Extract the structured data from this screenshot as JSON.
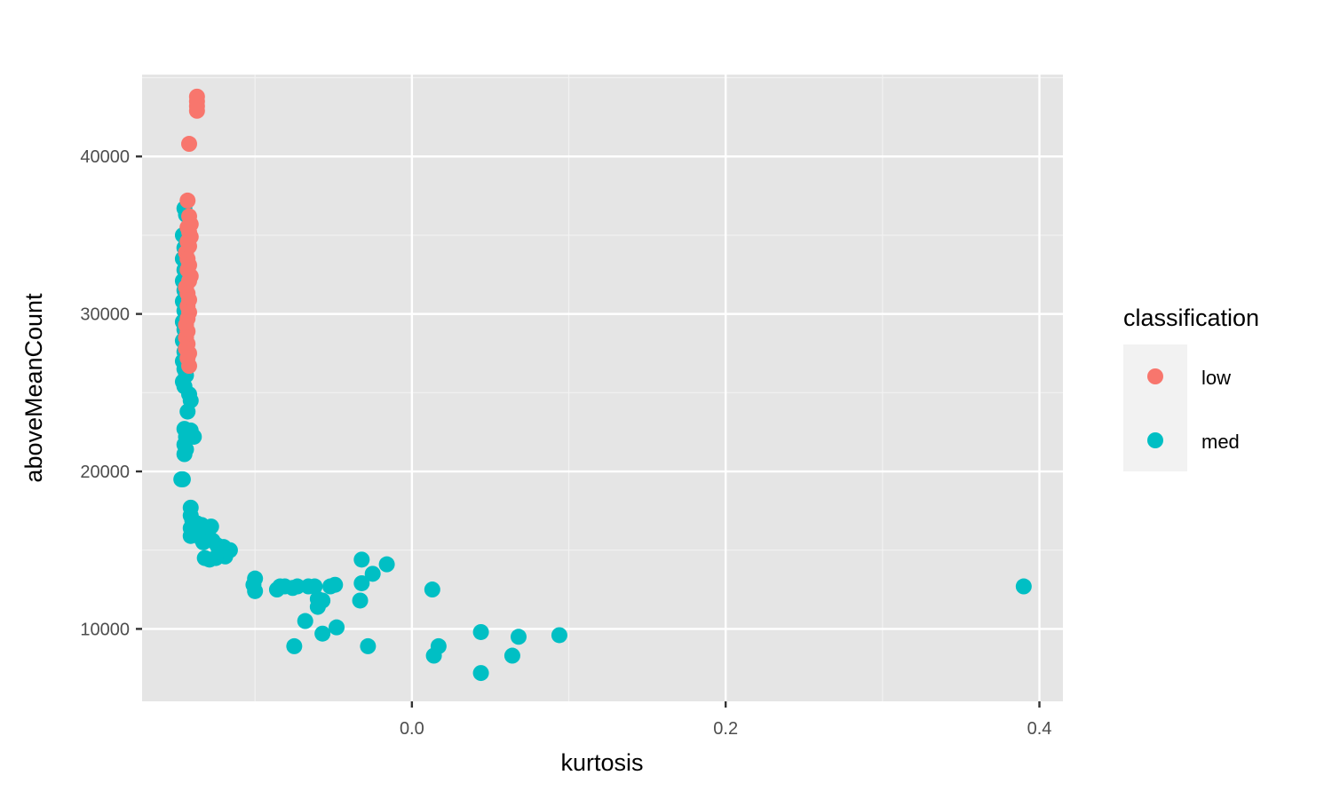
{
  "chart_data": {
    "type": "scatter",
    "xlabel": "kurtosis",
    "ylabel": "aboveMeanCount",
    "xlim": [
      -0.172,
      0.415
    ],
    "ylim": [
      5400,
      45200
    ],
    "x_ticks": [
      0.0,
      0.2,
      0.4
    ],
    "x_tick_labels": [
      "0.0",
      "0.2",
      "0.4"
    ],
    "y_ticks": [
      10000,
      20000,
      30000,
      40000
    ],
    "y_tick_labels": [
      "10000",
      "20000",
      "30000",
      "40000"
    ],
    "grid": true,
    "legend": {
      "title": "classification",
      "position": "right",
      "entries": [
        {
          "label": "low",
          "color": "#F8766D"
        },
        {
          "label": "med",
          "color": "#00BFC4"
        }
      ]
    },
    "series": [
      {
        "name": "med",
        "color": "#00BFC4",
        "points": [
          [
            -0.145,
            36700
          ],
          [
            -0.144,
            36300
          ],
          [
            -0.146,
            35000
          ],
          [
            -0.145,
            34200
          ],
          [
            -0.146,
            33500
          ],
          [
            -0.145,
            32800
          ],
          [
            -0.146,
            32100
          ],
          [
            -0.145,
            31500
          ],
          [
            -0.146,
            30800
          ],
          [
            -0.145,
            30200
          ],
          [
            -0.146,
            29500
          ],
          [
            -0.145,
            29000
          ],
          [
            -0.146,
            28300
          ],
          [
            -0.145,
            27600
          ],
          [
            -0.146,
            27000
          ],
          [
            -0.145,
            26500
          ],
          [
            -0.144,
            26100
          ],
          [
            -0.146,
            25700
          ],
          [
            -0.145,
            25400
          ],
          [
            -0.142,
            24900
          ],
          [
            -0.141,
            24500
          ],
          [
            -0.143,
            23800
          ],
          [
            -0.145,
            22700
          ],
          [
            -0.141,
            22600
          ],
          [
            -0.139,
            22200
          ],
          [
            -0.144,
            22200
          ],
          [
            -0.145,
            21700
          ],
          [
            -0.144,
            21400
          ],
          [
            -0.145,
            21100
          ],
          [
            -0.147,
            19500
          ],
          [
            -0.146,
            19500
          ],
          [
            -0.141,
            17700
          ],
          [
            -0.141,
            17200
          ],
          [
            -0.14,
            16900
          ],
          [
            -0.137,
            16700
          ],
          [
            -0.134,
            16600
          ],
          [
            -0.128,
            16500
          ],
          [
            -0.141,
            16400
          ],
          [
            -0.139,
            16300
          ],
          [
            -0.136,
            16200
          ],
          [
            -0.13,
            16000
          ],
          [
            -0.141,
            15900
          ],
          [
            -0.134,
            15700
          ],
          [
            -0.133,
            15500
          ],
          [
            -0.127,
            15600
          ],
          [
            -0.124,
            15300
          ],
          [
            -0.12,
            15200
          ],
          [
            -0.116,
            15000
          ],
          [
            -0.123,
            14900
          ],
          [
            -0.121,
            14800
          ],
          [
            -0.119,
            14600
          ],
          [
            -0.125,
            14500
          ],
          [
            -0.129,
            14400
          ],
          [
            -0.132,
            14500
          ],
          [
            -0.1,
            13200
          ],
          [
            -0.101,
            12800
          ],
          [
            -0.1,
            12400
          ],
          [
            -0.086,
            12500
          ],
          [
            -0.084,
            12700
          ],
          [
            -0.081,
            12700
          ],
          [
            -0.076,
            12600
          ],
          [
            -0.073,
            12700
          ],
          [
            -0.066,
            12700
          ],
          [
            -0.062,
            12700
          ],
          [
            -0.06,
            11900
          ],
          [
            -0.06,
            11400
          ],
          [
            -0.057,
            11800
          ],
          [
            -0.052,
            12700
          ],
          [
            -0.049,
            12800
          ],
          [
            -0.068,
            10500
          ],
          [
            -0.057,
            9700
          ],
          [
            -0.048,
            10100
          ],
          [
            -0.075,
            8900
          ],
          [
            -0.032,
            14400
          ],
          [
            -0.032,
            12900
          ],
          [
            -0.033,
            11800
          ],
          [
            -0.025,
            13500
          ],
          [
            -0.016,
            14100
          ],
          [
            -0.028,
            8900
          ],
          [
            0.013,
            12500
          ],
          [
            0.014,
            8300
          ],
          [
            0.017,
            8900
          ],
          [
            0.044,
            9800
          ],
          [
            0.044,
            7200
          ],
          [
            0.064,
            8300
          ],
          [
            0.068,
            9500
          ],
          [
            0.094,
            9600
          ],
          [
            0.39,
            12700
          ]
        ]
      },
      {
        "name": "low",
        "color": "#F8766D",
        "points": [
          [
            -0.137,
            43800
          ],
          [
            -0.137,
            43500
          ],
          [
            -0.137,
            43200
          ],
          [
            -0.137,
            42900
          ],
          [
            -0.142,
            40800
          ],
          [
            -0.143,
            37200
          ],
          [
            -0.142,
            36200
          ],
          [
            -0.141,
            35700
          ],
          [
            -0.143,
            35500
          ],
          [
            -0.142,
            35200
          ],
          [
            -0.141,
            34900
          ],
          [
            -0.143,
            34600
          ],
          [
            -0.142,
            34300
          ],
          [
            -0.144,
            33900
          ],
          [
            -0.143,
            33500
          ],
          [
            -0.142,
            33100
          ],
          [
            -0.143,
            32800
          ],
          [
            -0.141,
            32400
          ],
          [
            -0.142,
            32100
          ],
          [
            -0.144,
            31700
          ],
          [
            -0.143,
            31300
          ],
          [
            -0.142,
            30900
          ],
          [
            -0.143,
            30500
          ],
          [
            -0.142,
            30100
          ],
          [
            -0.143,
            29700
          ],
          [
            -0.144,
            29300
          ],
          [
            -0.143,
            28900
          ],
          [
            -0.144,
            28500
          ],
          [
            -0.143,
            28100
          ],
          [
            -0.144,
            27800
          ],
          [
            -0.142,
            27500
          ],
          [
            -0.143,
            27200
          ],
          [
            -0.142,
            26700
          ]
        ]
      }
    ]
  }
}
